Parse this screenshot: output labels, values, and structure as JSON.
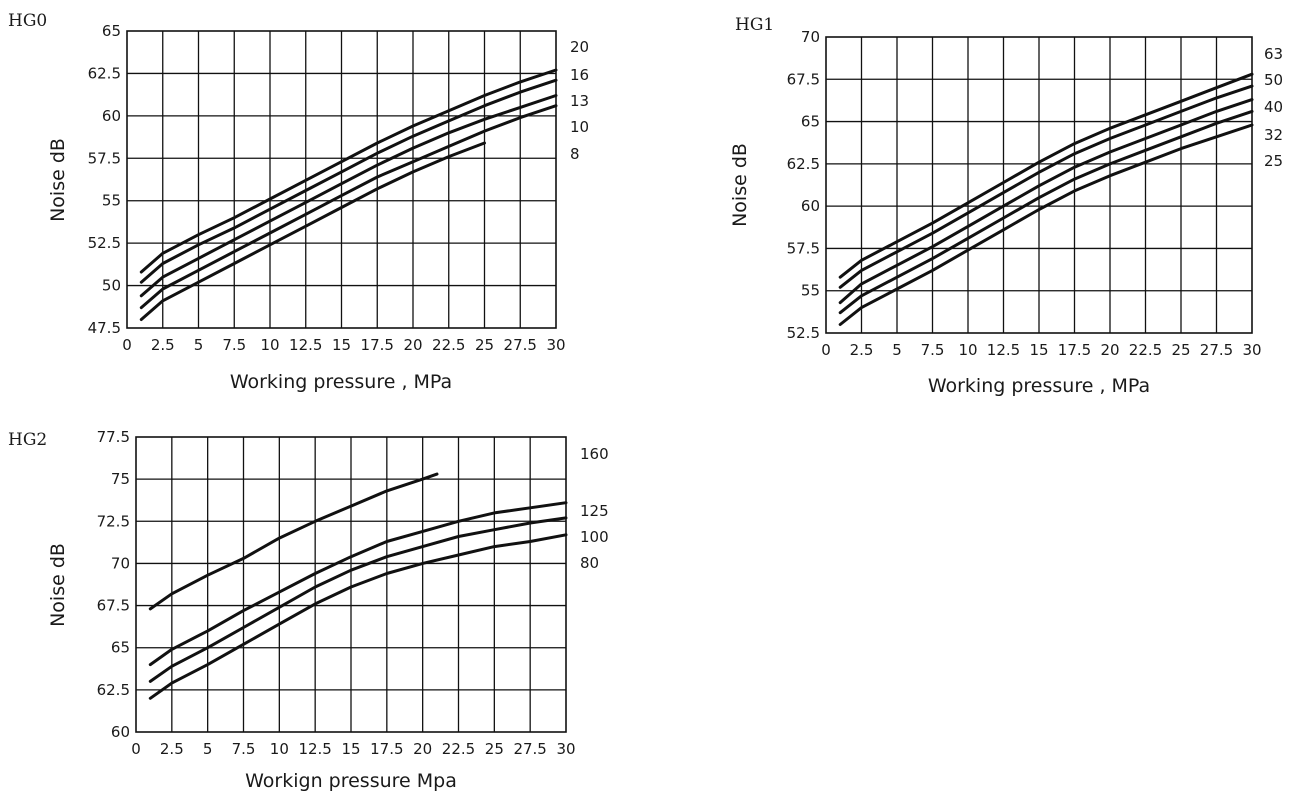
{
  "chart_data": [
    {
      "type": "line",
      "panel_label": "HG0",
      "xlabel": "Working pressure , MPa",
      "ylabel": "Noise  dB",
      "xlim": [
        0,
        30
      ],
      "ylim": [
        47.5,
        65
      ],
      "x_ticks": [
        "0",
        "2.5",
        "5",
        "7.5",
        "10",
        "12.5",
        "15",
        "17.5",
        "20",
        "22.5",
        "25",
        "27.5",
        "30"
      ],
      "y_ticks": [
        "47.5",
        "50",
        "52.5",
        "55",
        "57.5",
        "60",
        "62.5",
        "65"
      ],
      "grid": true,
      "series": [
        {
          "name": "20",
          "x": [
            1,
            2.5,
            5,
            7.5,
            10,
            12.5,
            15,
            17.5,
            20,
            22.5,
            25,
            27.5,
            30
          ],
          "y": [
            50.8,
            51.9,
            53.0,
            54.0,
            55.1,
            56.2,
            57.3,
            58.4,
            59.4,
            60.3,
            61.2,
            62.0,
            62.7
          ]
        },
        {
          "name": "16",
          "x": [
            1,
            2.5,
            5,
            7.5,
            10,
            12.5,
            15,
            17.5,
            20,
            22.5,
            25,
            27.5,
            30
          ],
          "y": [
            50.2,
            51.3,
            52.4,
            53.4,
            54.5,
            55.6,
            56.7,
            57.8,
            58.8,
            59.7,
            60.6,
            61.4,
            62.1
          ]
        },
        {
          "name": "13",
          "x": [
            1,
            2.5,
            5,
            7.5,
            10,
            12.5,
            15,
            17.5,
            20,
            22.5,
            25,
            27.5,
            30
          ],
          "y": [
            49.4,
            50.5,
            51.6,
            52.7,
            53.8,
            54.9,
            56.0,
            57.1,
            58.1,
            59.0,
            59.8,
            60.5,
            61.2
          ]
        },
        {
          "name": "10",
          "x": [
            1,
            2.5,
            5,
            7.5,
            10,
            12.5,
            15,
            17.5,
            20,
            22.5,
            25,
            27.5,
            30
          ],
          "y": [
            48.7,
            49.8,
            50.9,
            52.0,
            53.1,
            54.2,
            55.3,
            56.4,
            57.3,
            58.2,
            59.1,
            59.9,
            60.6
          ]
        },
        {
          "name": "8",
          "x": [
            1,
            2.5,
            5,
            7.5,
            10,
            12.5,
            15,
            17.5,
            20,
            22.5,
            25
          ],
          "y": [
            48.0,
            49.1,
            50.2,
            51.3,
            52.4,
            53.5,
            54.6,
            55.7,
            56.7,
            57.6,
            58.4
          ]
        }
      ]
    },
    {
      "type": "line",
      "panel_label": "HG1",
      "xlabel": "Working pressure , MPa",
      "ylabel": "Noise  dB",
      "xlim": [
        0,
        30
      ],
      "ylim": [
        52.5,
        70
      ],
      "x_ticks": [
        "0",
        "2.5",
        "5",
        "7.5",
        "10",
        "12.5",
        "15",
        "17.5",
        "20",
        "22.5",
        "25",
        "27.5",
        "30"
      ],
      "y_ticks": [
        "52.5",
        "55",
        "57.5",
        "60",
        "62.5",
        "65",
        "67.5",
        "70"
      ],
      "grid": true,
      "series": [
        {
          "name": "63",
          "x": [
            1,
            2.5,
            5,
            7.5,
            10,
            12.5,
            15,
            17.5,
            20,
            22.5,
            25,
            27.5,
            30
          ],
          "y": [
            55.8,
            56.8,
            57.9,
            59.0,
            60.2,
            61.4,
            62.6,
            63.7,
            64.6,
            65.4,
            66.2,
            67.0,
            67.8
          ]
        },
        {
          "name": "50",
          "x": [
            1,
            2.5,
            5,
            7.5,
            10,
            12.5,
            15,
            17.5,
            20,
            22.5,
            25,
            27.5,
            30
          ],
          "y": [
            55.2,
            56.2,
            57.3,
            58.4,
            59.6,
            60.8,
            62.0,
            63.1,
            64.0,
            64.8,
            65.6,
            66.4,
            67.1
          ]
        },
        {
          "name": "40",
          "x": [
            1,
            2.5,
            5,
            7.5,
            10,
            12.5,
            15,
            17.5,
            20,
            22.5,
            25,
            27.5,
            30
          ],
          "y": [
            54.3,
            55.4,
            56.5,
            57.6,
            58.8,
            60.0,
            61.2,
            62.3,
            63.2,
            64.0,
            64.8,
            65.6,
            66.3
          ]
        },
        {
          "name": "32",
          "x": [
            1,
            2.5,
            5,
            7.5,
            10,
            12.5,
            15,
            17.5,
            20,
            22.5,
            25,
            27.5,
            30
          ],
          "y": [
            53.7,
            54.7,
            55.8,
            56.9,
            58.1,
            59.3,
            60.5,
            61.6,
            62.5,
            63.3,
            64.1,
            64.9,
            65.6
          ]
        },
        {
          "name": "25",
          "x": [
            1,
            2.5,
            5,
            7.5,
            10,
            12.5,
            15,
            17.5,
            20,
            22.5,
            25,
            27.5,
            30
          ],
          "y": [
            53.0,
            54.0,
            55.1,
            56.2,
            57.4,
            58.6,
            59.8,
            60.9,
            61.8,
            62.6,
            63.4,
            64.1,
            64.8
          ]
        }
      ]
    },
    {
      "type": "line",
      "panel_label": "HG2",
      "xlabel": "Workign pressure  Mpa",
      "ylabel": "Noise  dB",
      "xlim": [
        0,
        30
      ],
      "ylim": [
        60,
        77.5
      ],
      "x_ticks": [
        "0",
        "2.5",
        "5",
        "7.5",
        "10",
        "12.5",
        "15",
        "17.5",
        "20",
        "22.5",
        "25",
        "27.5",
        "30"
      ],
      "y_ticks": [
        "60",
        "62.5",
        "65",
        "67.5",
        "70",
        "72.5",
        "75",
        "77.5"
      ],
      "grid": true,
      "series": [
        {
          "name": "160",
          "x": [
            1,
            2.5,
            5,
            7.5,
            10,
            12.5,
            15,
            17.5,
            20,
            21
          ],
          "y": [
            67.3,
            68.2,
            69.3,
            70.3,
            71.5,
            72.5,
            73.4,
            74.3,
            75.0,
            75.3
          ]
        },
        {
          "name": "125",
          "x": [
            1,
            2.5,
            5,
            7.5,
            10,
            12.5,
            15,
            17.5,
            20,
            22.5,
            25,
            27.5,
            30
          ],
          "y": [
            64.0,
            64.9,
            66.0,
            67.2,
            68.3,
            69.4,
            70.4,
            71.3,
            71.9,
            72.5,
            73.0,
            73.3,
            73.6
          ]
        },
        {
          "name": "100",
          "x": [
            1,
            2.5,
            5,
            7.5,
            10,
            12.5,
            15,
            17.5,
            20,
            22.5,
            25,
            27.5,
            30
          ],
          "y": [
            63.0,
            63.9,
            65.0,
            66.2,
            67.4,
            68.6,
            69.6,
            70.4,
            71.0,
            71.6,
            72.0,
            72.4,
            72.7
          ]
        },
        {
          "name": "80",
          "x": [
            1,
            2.5,
            5,
            7.5,
            10,
            12.5,
            15,
            17.5,
            20,
            22.5,
            25,
            27.5,
            30
          ],
          "y": [
            62.0,
            62.9,
            64.0,
            65.2,
            66.4,
            67.6,
            68.6,
            69.4,
            70.0,
            70.5,
            71.0,
            71.3,
            71.7
          ]
        }
      ]
    }
  ]
}
